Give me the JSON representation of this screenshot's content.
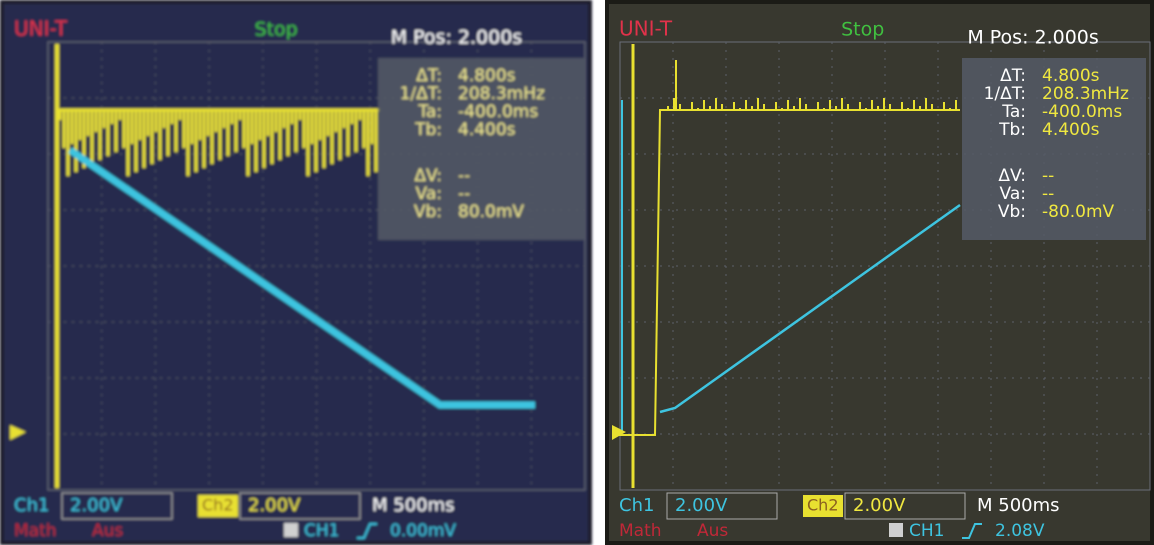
{
  "screens": [
    {
      "brand": "UNI-T",
      "status": "Stop",
      "position": "M Pos: 2.000s",
      "readouts": [
        {
          "label": "ΔT:",
          "value": "4.800s"
        },
        {
          "label": "1/ΔT:",
          "value": "208.3mHz"
        },
        {
          "label": "Ta:",
          "value": "-400.0ms"
        },
        {
          "label": "Tb:",
          "value": "4.400s"
        },
        {
          "label": "ΔV:",
          "value": "--"
        },
        {
          "label": "Va:",
          "value": "--"
        },
        {
          "label": "Vb:",
          "value": "80.0mV"
        }
      ],
      "ch1": "Ch1",
      "ch1_scale": "2.00V",
      "ch2": "Ch2",
      "ch2_scale": "2.00V",
      "timebase": "M 500ms",
      "math": "Math",
      "math_state": "Aus",
      "trigger_source": "CH1",
      "trigger_level": "0.00mV"
    },
    {
      "brand": "UNI-T",
      "status": "Stop",
      "position": "M Pos: 2.000s",
      "readouts": [
        {
          "label": "ΔT:",
          "value": "4.800s"
        },
        {
          "label": "1/ΔT:",
          "value": "208.3mHz"
        },
        {
          "label": "Ta:",
          "value": "-400.0ms"
        },
        {
          "label": "Tb:",
          "value": "4.400s"
        },
        {
          "label": "ΔV:",
          "value": "--"
        },
        {
          "label": "Va:",
          "value": "--"
        },
        {
          "label": "Vb:",
          "value": "-80.0mV"
        }
      ],
      "ch1": "Ch1",
      "ch1_scale": "2.00V",
      "ch2": "Ch2",
      "ch2_scale": "2.00V",
      "timebase": "M 500ms",
      "math": "Math",
      "math_state": "Aus",
      "trigger_source": "CH1",
      "trigger_level": "2.08V"
    }
  ]
}
